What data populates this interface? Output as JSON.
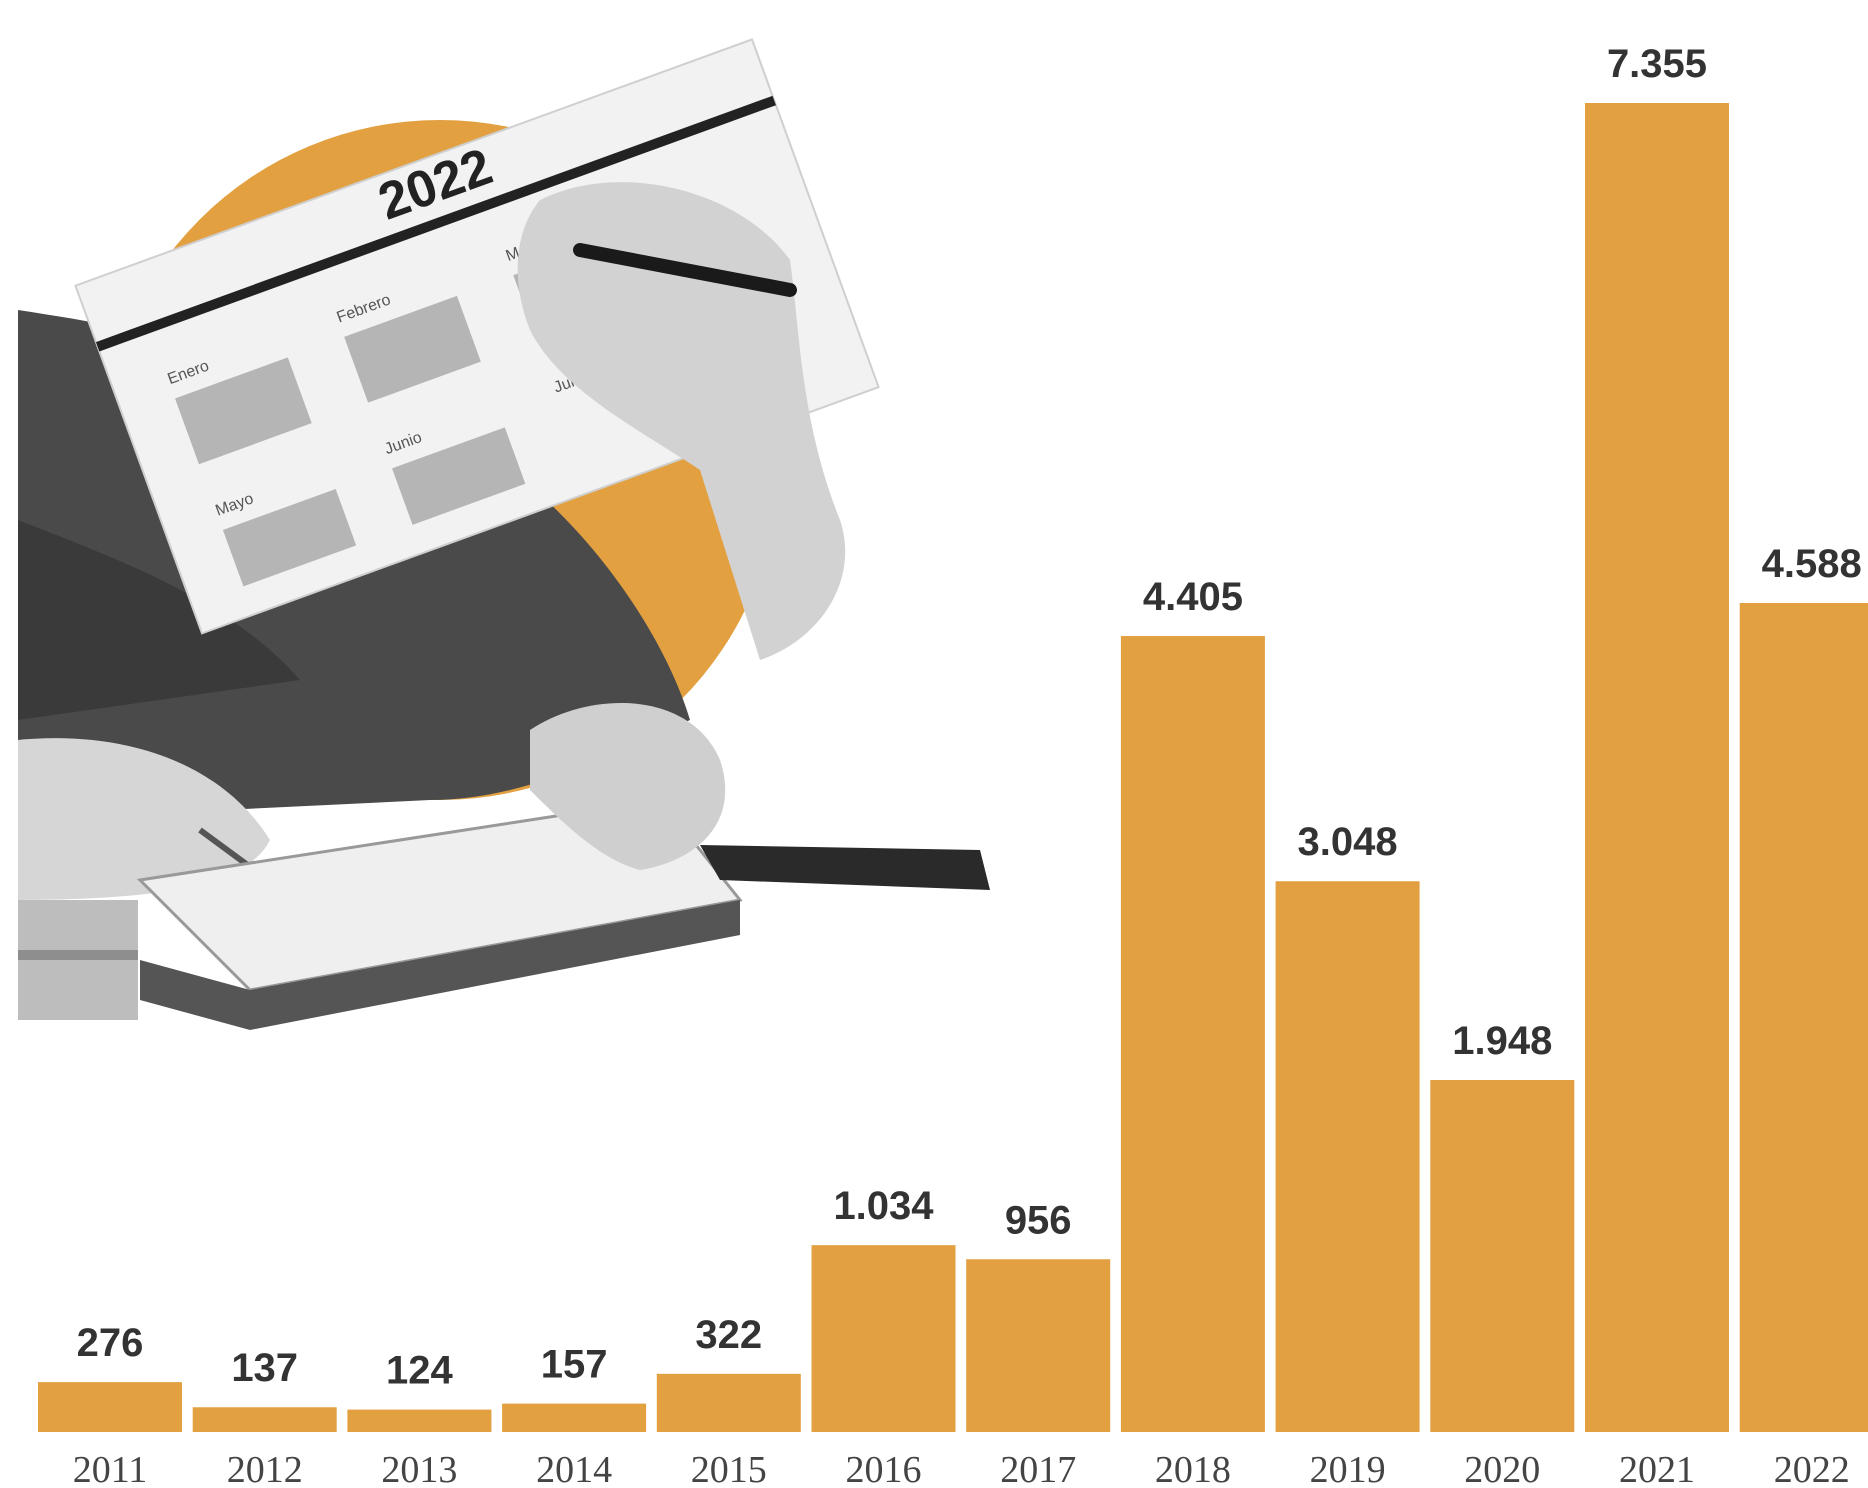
{
  "colors": {
    "bar": "#e2a040",
    "text": "#333333",
    "circle": "#e2a040"
  },
  "illustration": {
    "icon": "calendar-and-hands-photo",
    "calendar_year": "2022",
    "calendar_months": [
      "Enero",
      "Febrero",
      "Marzo",
      "Mayo",
      "Junio",
      "Julio"
    ]
  },
  "chart_data": {
    "type": "bar",
    "categories": [
      "2011",
      "2012",
      "2013",
      "2014",
      "2015",
      "2016",
      "2017",
      "2018",
      "2019",
      "2020",
      "2021",
      "2022"
    ],
    "values": [
      276,
      137,
      124,
      157,
      322,
      1034,
      956,
      4405,
      3048,
      1948,
      7355,
      4588
    ],
    "value_labels": [
      "276",
      "137",
      "124",
      "157",
      "322",
      "1.034",
      "956",
      "4.405",
      "3.048",
      "1.948",
      "7.355",
      "4.588"
    ],
    "title": "",
    "xlabel": "",
    "ylabel": "",
    "ylim": [
      0,
      7355
    ],
    "grid": false,
    "legend": "none"
  }
}
